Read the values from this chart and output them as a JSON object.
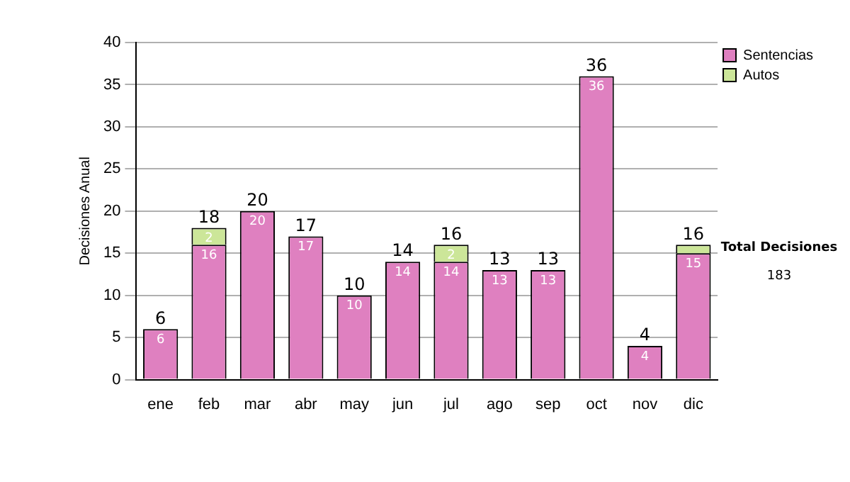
{
  "chart_data": {
    "type": "bar",
    "stacked": true,
    "ylabel": "Decisiones Anual",
    "categories": [
      "ene",
      "feb",
      "mar",
      "abr",
      "may",
      "jun",
      "jul",
      "ago",
      "sep",
      "oct",
      "nov",
      "dic"
    ],
    "series": [
      {
        "name": "Sentencias",
        "color": "#df80c0",
        "values": [
          6,
          16,
          20,
          17,
          10,
          14,
          14,
          13,
          13,
          36,
          4,
          15
        ],
        "value_labels": [
          "6",
          "16",
          "20",
          "17",
          "10",
          "14",
          "14",
          "13",
          "13",
          "36",
          "4",
          "15"
        ]
      },
      {
        "name": "Autos",
        "color": "#cce699",
        "values": [
          null,
          2,
          null,
          null,
          null,
          null,
          2,
          null,
          null,
          null,
          null,
          1
        ],
        "value_labels": [
          null,
          "2",
          null,
          null,
          null,
          null,
          "2",
          null,
          null,
          null,
          null,
          null
        ]
      }
    ],
    "totals": [
      "6",
      "18",
      "20",
      "17",
      "10",
      "14",
      "16",
      "13",
      "13",
      "36",
      "4",
      "16"
    ],
    "ylim": [
      0,
      40
    ],
    "yticks": [
      0,
      5,
      10,
      15,
      20,
      25,
      30,
      35,
      40
    ],
    "grid": "y",
    "legend": "right",
    "annotations": [
      "Total Decisiones",
      "183"
    ]
  }
}
